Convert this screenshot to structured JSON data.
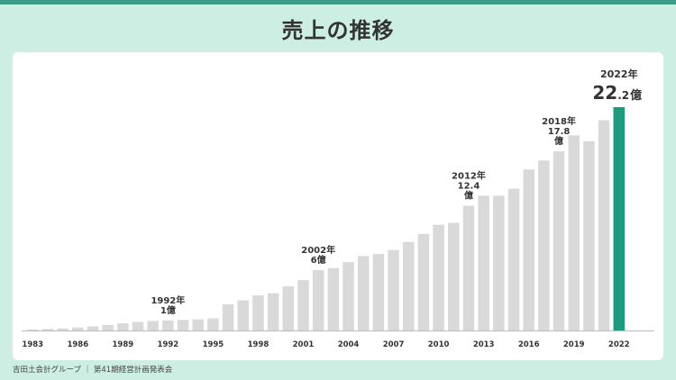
{
  "page": {
    "title": "売上の推移",
    "footer": "吉田土会計グループ ｜ 第41期経営計画発表会"
  },
  "colors": {
    "background": "#cdeee2",
    "bar": "#d9d9d9",
    "highlight": "#1a9c7f",
    "text": "#333333"
  },
  "chart_data": {
    "type": "bar",
    "title": "売上の推移",
    "xlabel": "",
    "ylabel": "",
    "unit": "億",
    "ylim": [
      0,
      22.2
    ],
    "years": [
      1983,
      1984,
      1985,
      1986,
      1987,
      1988,
      1989,
      1990,
      1991,
      1992,
      1993,
      1994,
      1995,
      1996,
      1997,
      1998,
      1999,
      2000,
      2001,
      2002,
      2003,
      2004,
      2005,
      2006,
      2007,
      2008,
      2009,
      2010,
      2011,
      2012,
      2013,
      2014,
      2015,
      2016,
      2017,
      2018,
      2019,
      2020,
      2021,
      2022
    ],
    "values": [
      0.1,
      0.15,
      0.2,
      0.3,
      0.4,
      0.55,
      0.7,
      0.85,
      0.95,
      1.0,
      1.05,
      1.1,
      1.2,
      2.6,
      3.0,
      3.5,
      3.7,
      4.4,
      5.0,
      6.0,
      6.2,
      6.8,
      7.4,
      7.6,
      8.0,
      8.8,
      9.6,
      10.5,
      10.7,
      12.4,
      13.4,
      13.4,
      14.1,
      16.0,
      16.9,
      17.8,
      19.4,
      18.8,
      20.9,
      22.2
    ],
    "tick_labels": [
      "1983",
      "1986",
      "1989",
      "1992",
      "1995",
      "1998",
      "2001",
      "2004",
      "2007",
      "2010",
      "2013",
      "2016",
      "2019",
      "2022"
    ],
    "highlight_year": 2022,
    "annotations": [
      {
        "year": 1992,
        "lines": [
          "1992年",
          "1億"
        ]
      },
      {
        "year": 2002,
        "lines": [
          "2002年",
          "6億"
        ]
      },
      {
        "year": 2012,
        "lines": [
          "2012年",
          "12.4",
          "億"
        ]
      },
      {
        "year": 2018,
        "lines": [
          "2018年",
          "17.8",
          "億"
        ]
      }
    ],
    "final_label": {
      "year_text": "2022年",
      "value_big": "22",
      "value_small": ".2",
      "unit": "億"
    }
  }
}
